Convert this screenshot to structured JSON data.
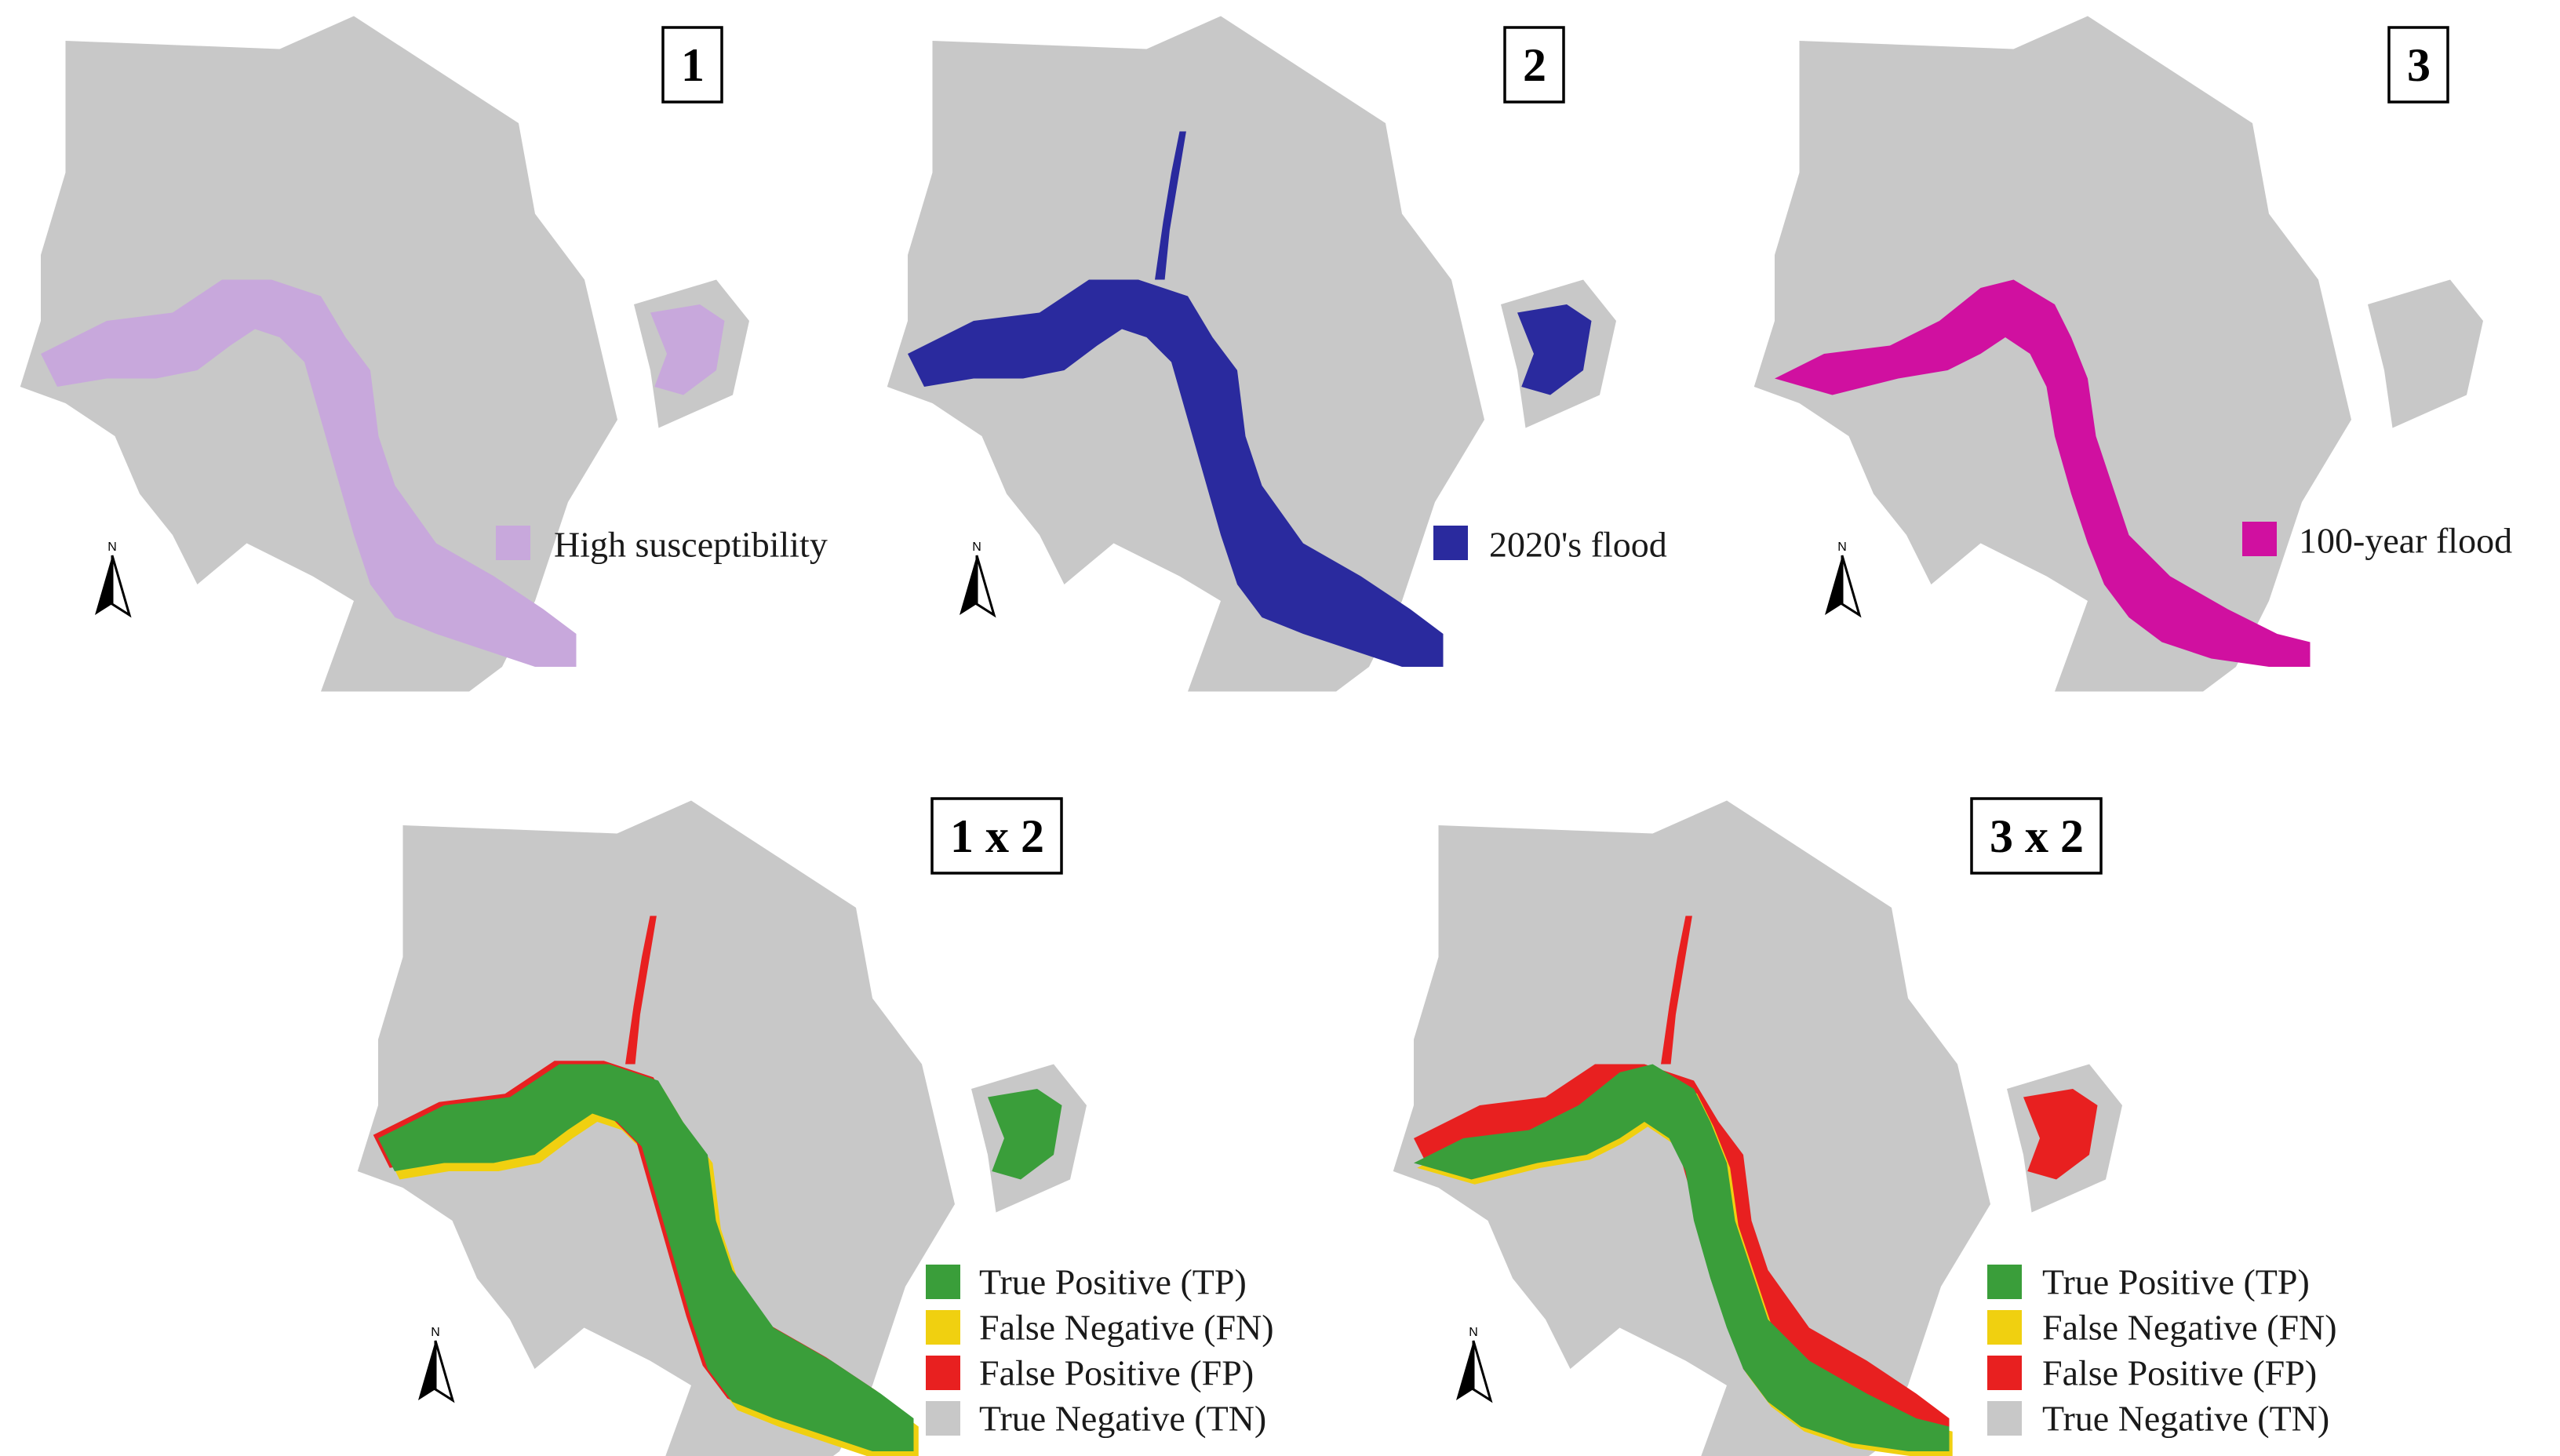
{
  "colors": {
    "land": "#c8c8c8",
    "high_susceptibility": "#c8a8dc",
    "flood_2020": "#2a2a9e",
    "flood_100_year": "#d010a0",
    "true_positive": "#3a9e3a",
    "false_negative": "#f0d010",
    "false_positive": "#e82020",
    "true_negative": "#c8c8c8"
  },
  "icons": {
    "north_arrow": "north-arrow-icon"
  },
  "panels": [
    {
      "id": "p1",
      "tag": "1",
      "north": "N",
      "legend": [
        {
          "label": "High susceptibility",
          "color": "#c8a8dc"
        }
      ]
    },
    {
      "id": "p2",
      "tag": "2",
      "north": "N",
      "legend": [
        {
          "label": "2020's flood",
          "color": "#2a2a9e"
        }
      ]
    },
    {
      "id": "p3",
      "tag": "3",
      "north": "N",
      "legend": [
        {
          "label": "100-year flood",
          "color": "#d010a0"
        }
      ]
    },
    {
      "id": "p4",
      "tag": "1 x 2",
      "north": "N",
      "legend": [
        {
          "label": "True Positive (TP)",
          "color": "#3a9e3a"
        },
        {
          "label": "False Negative (FN)",
          "color": "#f0d010"
        },
        {
          "label": "False Positive (FP)",
          "color": "#e82020"
        },
        {
          "label": "True Negative (TN)",
          "color": "#c8c8c8"
        }
      ]
    },
    {
      "id": "p5",
      "tag": "3 x 2",
      "north": "N",
      "legend": [
        {
          "label": "True Positive (TP)",
          "color": "#3a9e3a"
        },
        {
          "label": "False Negative (FN)",
          "color": "#f0d010"
        },
        {
          "label": "False Positive (FP)",
          "color": "#e82020"
        },
        {
          "label": "True Negative (TN)",
          "color": "#c8c8c8"
        }
      ]
    }
  ]
}
